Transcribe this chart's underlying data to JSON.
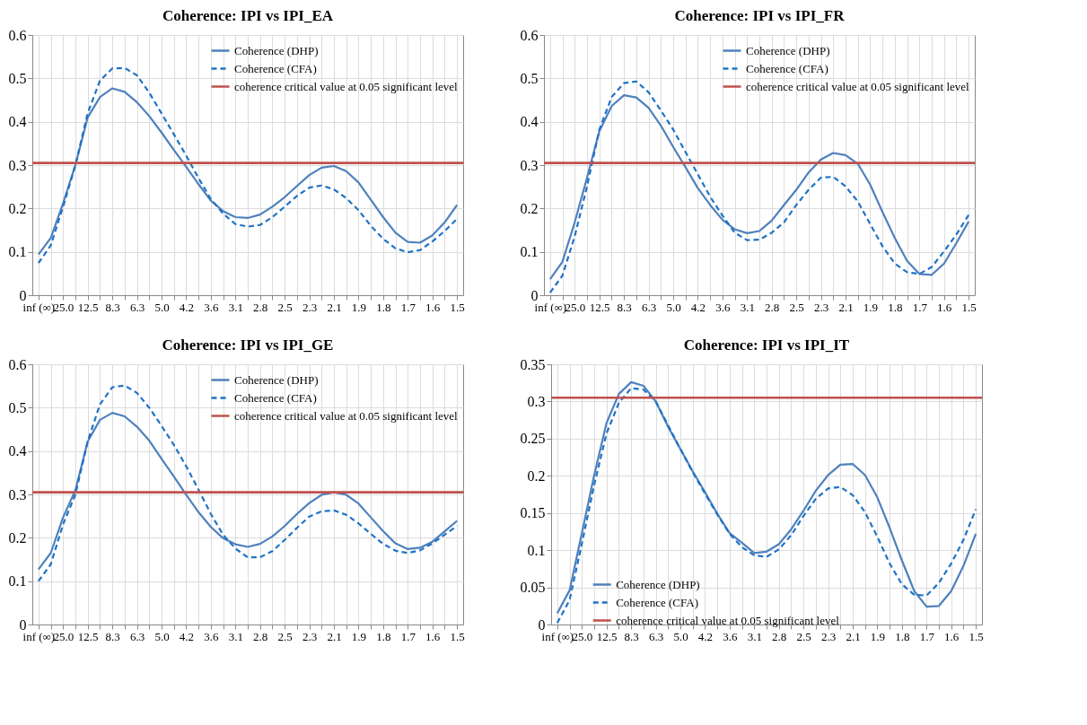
{
  "chart_data": [
    {
      "type": "line",
      "title": "Coherence: IPI vs IPI_EA",
      "categories": [
        "inf (∞)",
        null,
        "25.0",
        null,
        "12.5",
        null,
        "8.3",
        null,
        "6.3",
        null,
        "5.0",
        null,
        "4.2",
        null,
        "3.6",
        null,
        "3.1",
        null,
        "2.8",
        null,
        "2.5",
        null,
        "2.3",
        null,
        "2.1",
        null,
        "1.9",
        null,
        "1.8",
        null,
        "1.7",
        null,
        "1.6",
        null,
        "1.5"
      ],
      "ylim": [
        0,
        0.6
      ],
      "yticks": [
        0,
        0.1,
        0.2,
        0.3,
        0.4,
        0.5,
        0.6
      ],
      "grid": true,
      "legend": "top right",
      "series": [
        {
          "name": "Coherence (DHP)",
          "color": "#4f81bd",
          "line_style": "solid",
          "values": [
            0.094,
            0.132,
            0.212,
            0.3,
            0.41,
            0.457,
            0.477,
            0.469,
            0.445,
            0.413,
            0.375,
            0.335,
            0.296,
            0.256,
            0.218,
            0.194,
            0.18,
            0.178,
            0.186,
            0.204,
            0.226,
            0.252,
            0.277,
            0.294,
            0.298,
            0.286,
            0.26,
            0.22,
            0.18,
            0.144,
            0.123,
            0.121,
            0.138,
            0.168,
            0.208
          ]
        },
        {
          "name": "Coherence (CFA)",
          "color": "#1f73c6",
          "line_style": "dashed",
          "values": [
            0.074,
            0.115,
            0.204,
            0.3,
            0.42,
            0.495,
            0.523,
            0.524,
            0.507,
            0.467,
            0.419,
            0.371,
            0.322,
            0.27,
            0.222,
            0.188,
            0.164,
            0.158,
            0.162,
            0.18,
            0.204,
            0.229,
            0.248,
            0.253,
            0.244,
            0.224,
            0.196,
            0.16,
            0.13,
            0.108,
            0.099,
            0.104,
            0.124,
            0.148,
            0.176
          ]
        }
      ],
      "ref_lines": [
        {
          "axis": "y",
          "value": 0.305,
          "label": "coherence critical value at 0.05 significant level",
          "color": "#c0504d"
        }
      ]
    },
    {
      "type": "line",
      "title": "Coherence: IPI vs IPI_FR",
      "categories": [
        "inf (∞)",
        null,
        "25.0",
        null,
        "12.5",
        null,
        "8.3",
        null,
        "6.3",
        null,
        "5.0",
        null,
        "4.2",
        null,
        "3.6",
        null,
        "3.1",
        null,
        "2.8",
        null,
        "2.5",
        null,
        "2.3",
        null,
        "2.1",
        null,
        "1.9",
        null,
        "1.8",
        null,
        "1.7",
        null,
        "1.6",
        null,
        "1.5"
      ],
      "ylim": [
        0,
        0.6
      ],
      "yticks": [
        0,
        0.1,
        0.2,
        0.3,
        0.4,
        0.5,
        0.6
      ],
      "grid": true,
      "legend": "top right",
      "series": [
        {
          "name": "Coherence (DHP)",
          "color": "#4f81bd",
          "line_style": "solid",
          "values": [
            0.037,
            0.077,
            0.168,
            0.271,
            0.378,
            0.436,
            0.461,
            0.456,
            0.432,
            0.391,
            0.342,
            0.295,
            0.247,
            0.208,
            0.174,
            0.152,
            0.143,
            0.148,
            0.172,
            0.208,
            0.243,
            0.283,
            0.313,
            0.328,
            0.323,
            0.303,
            0.255,
            0.192,
            0.132,
            0.079,
            0.049,
            0.047,
            0.073,
            0.12,
            0.17
          ]
        },
        {
          "name": "Coherence (CFA)",
          "color": "#1f73c6",
          "line_style": "dashed",
          "values": [
            0.006,
            0.045,
            0.136,
            0.251,
            0.382,
            0.457,
            0.489,
            0.493,
            0.468,
            0.426,
            0.382,
            0.33,
            0.279,
            0.227,
            0.184,
            0.144,
            0.127,
            0.128,
            0.144,
            0.168,
            0.208,
            0.243,
            0.271,
            0.273,
            0.251,
            0.216,
            0.164,
            0.113,
            0.073,
            0.053,
            0.049,
            0.065,
            0.101,
            0.14,
            0.185
          ]
        }
      ],
      "ref_lines": [
        {
          "axis": "y",
          "value": 0.305,
          "label": "coherence critical value at 0.05 significant level",
          "color": "#c0504d"
        }
      ]
    },
    {
      "type": "line",
      "title": "Coherence: IPI vs IPI_GE",
      "categories": [
        "inf (∞)",
        null,
        "25.0",
        null,
        "12.5",
        null,
        "8.3",
        null,
        "6.3",
        null,
        "5.0",
        null,
        "4.2",
        null,
        "3.6",
        null,
        "3.1",
        null,
        "2.8",
        null,
        "2.5",
        null,
        "2.3",
        null,
        "2.1",
        null,
        "1.9",
        null,
        "1.8",
        null,
        "1.7",
        null,
        "1.6",
        null,
        "1.5"
      ],
      "ylim": [
        0,
        0.6
      ],
      "yticks": [
        0,
        0.1,
        0.2,
        0.3,
        0.4,
        0.5,
        0.6
      ],
      "grid": true,
      "legend": "top right",
      "series": [
        {
          "name": "Coherence (DHP)",
          "color": "#4f81bd",
          "line_style": "solid",
          "values": [
            0.127,
            0.165,
            0.247,
            0.31,
            0.422,
            0.472,
            0.488,
            0.48,
            0.456,
            0.424,
            0.382,
            0.341,
            0.299,
            0.259,
            0.225,
            0.199,
            0.185,
            0.179,
            0.186,
            0.203,
            0.227,
            0.255,
            0.28,
            0.299,
            0.305,
            0.299,
            0.279,
            0.247,
            0.215,
            0.187,
            0.174,
            0.177,
            0.191,
            0.215,
            0.239
          ]
        },
        {
          "name": "Coherence (CFA)",
          "color": "#1f73c6",
          "line_style": "dashed",
          "values": [
            0.1,
            0.139,
            0.231,
            0.3,
            0.422,
            0.508,
            0.547,
            0.551,
            0.534,
            0.5,
            0.458,
            0.414,
            0.365,
            0.311,
            0.255,
            0.207,
            0.175,
            0.155,
            0.155,
            0.169,
            0.195,
            0.223,
            0.249,
            0.261,
            0.263,
            0.253,
            0.233,
            0.209,
            0.186,
            0.17,
            0.165,
            0.171,
            0.187,
            0.207,
            0.227
          ]
        }
      ],
      "ref_lines": [
        {
          "axis": "y",
          "value": 0.305,
          "label": "coherence critical value at 0.05 significant level",
          "color": "#c0504d"
        }
      ]
    },
    {
      "type": "line",
      "title": "Coherence: IPI vs IPI_IT",
      "categories": [
        "inf (∞)",
        null,
        "25.0",
        null,
        "12.5",
        null,
        "8.3",
        null,
        "6.3",
        null,
        "5.0",
        null,
        "4.2",
        null,
        "3.6",
        null,
        "3.1",
        null,
        "2.8",
        null,
        "2.5",
        null,
        "2.3",
        null,
        "2.1",
        null,
        "1.9",
        null,
        "1.8",
        null,
        "1.7",
        null,
        "1.6",
        null,
        "1.5"
      ],
      "ylim": [
        0,
        0.35
      ],
      "yticks": [
        0,
        0.05,
        0.1,
        0.15,
        0.2,
        0.25,
        0.3,
        0.35
      ],
      "grid": true,
      "legend": "bottom left",
      "series": [
        {
          "name": "Coherence (DHP)",
          "color": "#4f81bd",
          "line_style": "solid",
          "values": [
            0.015,
            0.046,
            0.123,
            0.201,
            0.271,
            0.31,
            0.326,
            0.321,
            0.3,
            0.266,
            0.236,
            0.206,
            0.178,
            0.149,
            0.123,
            0.11,
            0.096,
            0.098,
            0.108,
            0.128,
            0.153,
            0.18,
            0.201,
            0.215,
            0.216,
            0.201,
            0.171,
            0.13,
            0.086,
            0.045,
            0.024,
            0.025,
            0.045,
            0.079,
            0.122
          ]
        },
        {
          "name": "Coherence (CFA)",
          "color": "#1f73c6",
          "line_style": "dashed",
          "values": [
            0.002,
            0.033,
            0.109,
            0.188,
            0.257,
            0.298,
            0.318,
            0.316,
            0.3,
            0.268,
            0.236,
            0.205,
            0.176,
            0.148,
            0.122,
            0.104,
            0.093,
            0.091,
            0.101,
            0.12,
            0.146,
            0.169,
            0.183,
            0.185,
            0.174,
            0.151,
            0.118,
            0.082,
            0.054,
            0.04,
            0.039,
            0.056,
            0.082,
            0.114,
            0.155
          ]
        }
      ],
      "ref_lines": [
        {
          "axis": "y",
          "value": 0.305,
          "label": "coherence critical value at 0.05 significant level",
          "color": "#c0504d"
        }
      ]
    }
  ]
}
